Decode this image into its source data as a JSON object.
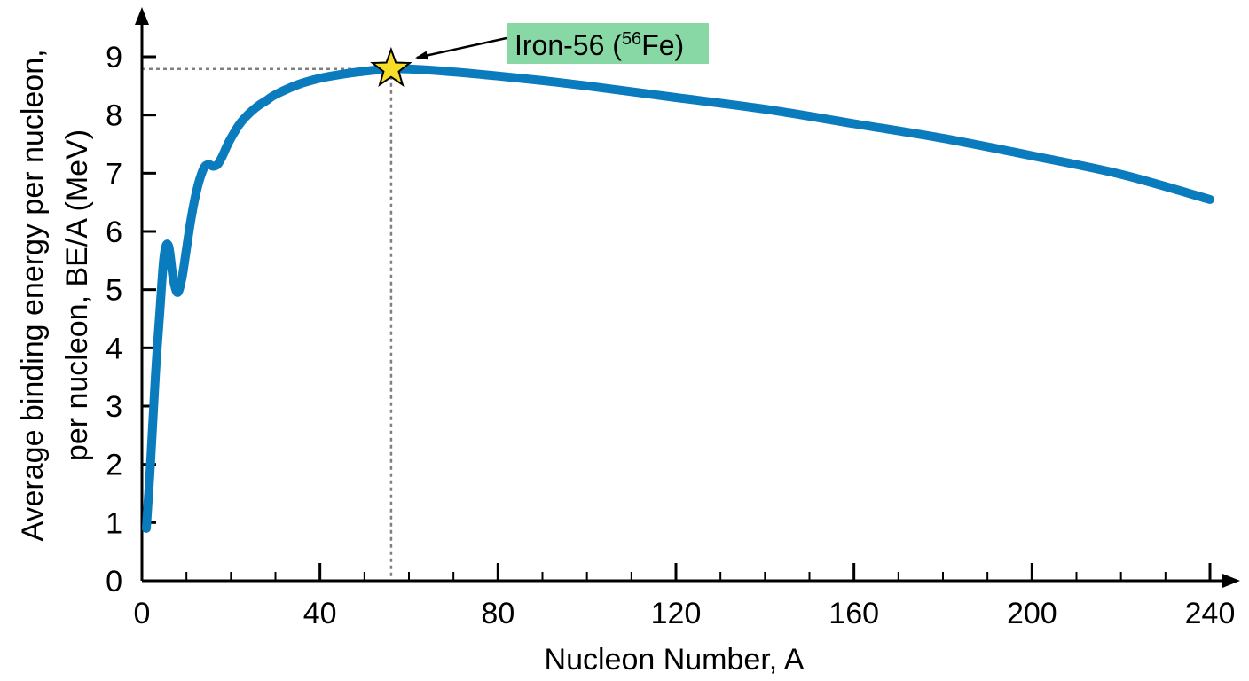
{
  "chart_data": {
    "type": "line",
    "title": "",
    "xlabel": "Nucleon Number, A",
    "ylabel_lines": [
      "Average binding energy per nucleon,",
      "per nucleon, BE/A (MeV)"
    ],
    "xlim": [
      0,
      240
    ],
    "ylim": [
      0,
      9
    ],
    "x_major_ticks": [
      0,
      40,
      80,
      120,
      160,
      200,
      240
    ],
    "x_minor_step": 10,
    "y_ticks": [
      0,
      1,
      2,
      3,
      4,
      5,
      6,
      7,
      8,
      9
    ],
    "grid": false,
    "line_color": "#0a7bbd",
    "series": [
      {
        "name": "",
        "x": [
          1,
          2,
          3,
          4,
          5,
          6,
          7,
          8,
          9,
          10,
          11,
          12,
          13,
          14,
          15,
          16,
          17,
          18,
          19,
          20,
          22,
          24,
          26,
          28,
          30,
          35,
          40,
          45,
          50,
          56,
          60,
          70,
          80,
          90,
          100,
          120,
          140,
          160,
          180,
          200,
          220,
          240
        ],
        "y": [
          0.9,
          2.1,
          3.5,
          4.6,
          5.6,
          5.75,
          5.2,
          4.95,
          5.2,
          5.7,
          6.2,
          6.6,
          6.9,
          7.1,
          7.15,
          7.12,
          7.15,
          7.28,
          7.45,
          7.6,
          7.85,
          8.02,
          8.15,
          8.25,
          8.35,
          8.52,
          8.63,
          8.7,
          8.75,
          8.79,
          8.79,
          8.74,
          8.67,
          8.59,
          8.5,
          8.3,
          8.1,
          7.85,
          7.6,
          7.3,
          6.98,
          6.55
        ]
      }
    ],
    "annotation": {
      "label_main": "Iron-56 (",
      "label_sup": "56",
      "label_end": "Fe)",
      "x": 56,
      "y": 8.79,
      "box_color": "#88d8a6",
      "star_color": "#f5dd2a",
      "reference_line_color": "#808080"
    }
  }
}
